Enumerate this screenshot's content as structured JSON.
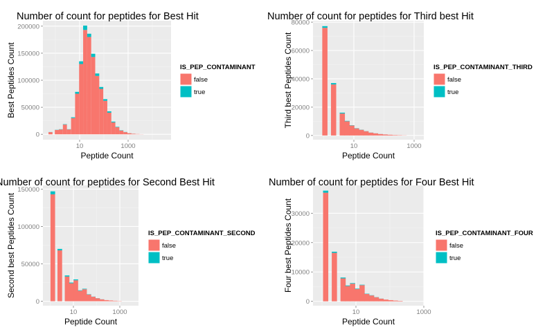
{
  "colors": {
    "false": "#F8766D",
    "true": "#00BFC4",
    "panel": "#EBEBEB",
    "grid_major": "#FFFFFF",
    "grid_minor": "#F3F3F3",
    "axis_text": "#7F7F7F"
  },
  "chart_data": [
    {
      "type": "bar",
      "title": "Number of count for peptides for Best Hit",
      "xlabel": "Peptide Count",
      "ylabel": "Best Peptides Count",
      "x_scale": "log10",
      "x_tick_labels": [
        "10",
        "1000"
      ],
      "x_ticks": [
        10,
        1000
      ],
      "y_tick_labels": [
        "0",
        "50000",
        "100000",
        "150000",
        "200000"
      ],
      "y_ticks": [
        0,
        50000,
        100000,
        150000,
        200000
      ],
      "ylim": [
        -10000,
        210000
      ],
      "grid": true,
      "legend": {
        "title": "IS_PEP_CONTAMINANT",
        "entries": [
          "false",
          "true"
        ],
        "placement": "right"
      },
      "bins": [
        {
          "x": 1.12,
          "false": 4000,
          "true": 200
        },
        {
          "x": 1.37,
          "false": 0,
          "true": 0
        },
        {
          "x": 1.64,
          "false": 8000,
          "true": 300
        },
        {
          "x": 1.97,
          "false": 9000,
          "true": 400
        },
        {
          "x": 2.3,
          "false": 18000,
          "true": 700
        },
        {
          "x": 2.63,
          "false": 9000,
          "true": 400
        },
        {
          "x": 2.97,
          "false": 30000,
          "true": 1500
        },
        {
          "x": 3.3,
          "false": 75000,
          "true": 3500
        },
        {
          "x": 3.63,
          "false": 130000,
          "true": 5000
        },
        {
          "x": 3.96,
          "false": 193000,
          "true": 8000
        },
        {
          "x": 4.29,
          "false": 180000,
          "true": 6000
        },
        {
          "x": 4.62,
          "false": 143000,
          "true": 6000
        },
        {
          "x": 4.95,
          "false": 108000,
          "true": 4500
        },
        {
          "x": 5.28,
          "false": 84000,
          "true": 3500
        },
        {
          "x": 5.61,
          "false": 62000,
          "true": 3000
        },
        {
          "x": 5.94,
          "false": 40000,
          "true": 2500
        },
        {
          "x": 6.27,
          "false": 22000,
          "true": 1500
        },
        {
          "x": 6.6,
          "false": 13000,
          "true": 800
        },
        {
          "x": 6.93,
          "false": 7000,
          "true": 500
        },
        {
          "x": 7.26,
          "false": 4000,
          "true": 300
        },
        {
          "x": 7.59,
          "false": 2000,
          "true": 100
        },
        {
          "x": 7.92,
          "false": 1000,
          "true": 50
        },
        {
          "x": 8.25,
          "false": 500,
          "true": 0
        },
        {
          "x": 8.58,
          "false": 200,
          "true": 0
        }
      ]
    },
    {
      "type": "bar",
      "title": "Number of count for peptides for Third best Hit",
      "xlabel": "Peptide Count",
      "ylabel": "Third best Peptides Count",
      "x_scale": "log10",
      "x_tick_labels": [
        "10",
        "1000"
      ],
      "x_ticks": [
        10,
        1000
      ],
      "y_tick_labels": [
        "0",
        "20000",
        "40000",
        "60000",
        "80000"
      ],
      "y_ticks": [
        0,
        20000,
        40000,
        60000,
        80000
      ],
      "ylim": [
        -3000,
        81000
      ],
      "grid": true,
      "legend": {
        "title": "IS_PEP_CONTAMINANT_THIRD",
        "entries": [
          "false",
          "true"
        ],
        "placement": "right"
      },
      "bins": [
        {
          "x": 1.25,
          "false": 76000,
          "true": 1200
        },
        {
          "x": 1.8,
          "false": 36000,
          "true": 1000
        },
        {
          "x": 2.35,
          "false": 15500,
          "true": 600
        },
        {
          "x": 2.65,
          "false": 10000,
          "true": 300
        },
        {
          "x": 2.95,
          "false": 7000,
          "true": 200
        },
        {
          "x": 3.25,
          "false": 5000,
          "true": 150
        },
        {
          "x": 3.55,
          "false": 4000,
          "true": 100
        },
        {
          "x": 3.85,
          "false": 3000,
          "true": 80
        },
        {
          "x": 4.15,
          "false": 2000,
          "true": 60
        },
        {
          "x": 4.45,
          "false": 1500,
          "true": 40
        },
        {
          "x": 4.75,
          "false": 1000,
          "true": 30
        },
        {
          "x": 5.05,
          "false": 700,
          "true": 20
        },
        {
          "x": 5.35,
          "false": 500,
          "true": 0
        },
        {
          "x": 5.65,
          "false": 300,
          "true": 0
        },
        {
          "x": 5.95,
          "false": 200,
          "true": 0
        },
        {
          "x": 6.25,
          "false": 100,
          "true": 0
        }
      ]
    },
    {
      "type": "bar",
      "title": "Number of count for peptides for Second Best Hit",
      "xlabel": "Peptide Count",
      "ylabel": "Second best Peptides Count",
      "x_scale": "log10",
      "x_tick_labels": [
        "10",
        "1000"
      ],
      "x_ticks": [
        10,
        1000
      ],
      "y_tick_labels": [
        "0",
        "50000",
        "100000",
        "150000"
      ],
      "y_ticks": [
        0,
        50000,
        100000,
        150000
      ],
      "ylim": [
        -6000,
        155000
      ],
      "grid": true,
      "legend": {
        "title": "IS_PEP_CONTAMINANT_SECOND",
        "entries": [
          "false",
          "true"
        ],
        "placement": "right"
      },
      "bins": [
        {
          "x": 1.2,
          "false": 143000,
          "true": 4000
        },
        {
          "x": 1.7,
          "false": 68000,
          "true": 2000
        },
        {
          "x": 2.22,
          "false": 33000,
          "true": 1500
        },
        {
          "x": 2.53,
          "false": 24000,
          "true": 1000
        },
        {
          "x": 2.84,
          "false": 28000,
          "true": 1200
        },
        {
          "x": 3.15,
          "false": 14000,
          "true": 600
        },
        {
          "x": 3.46,
          "false": 16000,
          "true": 700
        },
        {
          "x": 3.77,
          "false": 9000,
          "true": 400
        },
        {
          "x": 4.08,
          "false": 6000,
          "true": 200
        },
        {
          "x": 4.39,
          "false": 4000,
          "true": 150
        },
        {
          "x": 4.7,
          "false": 2500,
          "true": 100
        },
        {
          "x": 5.01,
          "false": 1500,
          "true": 0
        },
        {
          "x": 5.32,
          "false": 1000,
          "true": 0
        },
        {
          "x": 5.63,
          "false": 600,
          "true": 0
        },
        {
          "x": 5.94,
          "false": 300,
          "true": 0
        }
      ]
    },
    {
      "type": "bar",
      "title": "Number of count for peptides for Four Best Hit",
      "xlabel": "Peptide Count",
      "ylabel": "Four best Peptides Count",
      "x_scale": "log10",
      "x_tick_labels": [
        "10",
        "1000"
      ],
      "x_ticks": [
        10,
        1000
      ],
      "y_tick_labels": [
        "0",
        "10000",
        "20000",
        "30000"
      ],
      "y_ticks": [
        0,
        10000,
        20000,
        30000
      ],
      "ylim": [
        -1500,
        39500
      ],
      "grid": true,
      "legend": {
        "title": "IS_PEP_CONTAMINANT_FOUR",
        "entries": [
          "false",
          "true"
        ],
        "placement": "right"
      },
      "bins": [
        {
          "x": 1.3,
          "false": 37000,
          "true": 700
        },
        {
          "x": 1.85,
          "false": 16500,
          "true": 400
        },
        {
          "x": 2.4,
          "false": 7800,
          "true": 300
        },
        {
          "x": 2.7,
          "false": 5200,
          "true": 200
        },
        {
          "x": 3.0,
          "false": 6000,
          "true": 200
        },
        {
          "x": 3.3,
          "false": 4200,
          "true": 150
        },
        {
          "x": 3.6,
          "false": 5500,
          "true": 150
        },
        {
          "x": 3.9,
          "false": 2500,
          "true": 100
        },
        {
          "x": 4.2,
          "false": 2000,
          "true": 80
        },
        {
          "x": 4.5,
          "false": 1400,
          "true": 50
        },
        {
          "x": 4.8,
          "false": 900,
          "true": 30
        },
        {
          "x": 5.1,
          "false": 600,
          "true": 0
        },
        {
          "x": 5.4,
          "false": 400,
          "true": 0
        },
        {
          "x": 5.7,
          "false": 250,
          "true": 0
        },
        {
          "x": 6.0,
          "false": 150,
          "true": 0
        }
      ]
    }
  ]
}
